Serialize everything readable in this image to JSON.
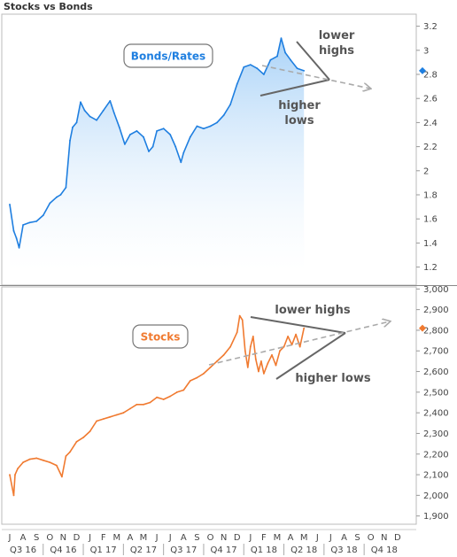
{
  "title": "Stocks vs Bonds",
  "chart_data": [
    {
      "type": "area",
      "name": "Bonds/Rates",
      "label": "Bonds/Rates",
      "color": "#1f7fe0",
      "ylim": [
        1.05,
        3.3
      ],
      "yticks": [
        "3.2",
        "3",
        "2.8",
        "2.6",
        "2.4",
        "2.2",
        "2",
        "1.8",
        "1.6",
        "1.4",
        "1.2"
      ],
      "ytick_values": [
        3.2,
        3.0,
        2.8,
        2.6,
        2.4,
        2.2,
        2.0,
        1.8,
        1.6,
        1.4,
        1.2
      ],
      "bold_tick": "2",
      "last_value": 2.83,
      "series": [
        {
          "t": 0.0,
          "y": 1.72
        },
        {
          "t": 0.3,
          "y": 1.5
        },
        {
          "t": 0.5,
          "y": 1.44
        },
        {
          "t": 0.7,
          "y": 1.36
        },
        {
          "t": 1.0,
          "y": 1.55
        },
        {
          "t": 1.5,
          "y": 1.57
        },
        {
          "t": 2.0,
          "y": 1.58
        },
        {
          "t": 2.5,
          "y": 1.63
        },
        {
          "t": 3.0,
          "y": 1.73
        },
        {
          "t": 3.5,
          "y": 1.78
        },
        {
          "t": 3.8,
          "y": 1.8
        },
        {
          "t": 4.2,
          "y": 1.86
        },
        {
          "t": 4.5,
          "y": 2.25
        },
        {
          "t": 4.7,
          "y": 2.36
        },
        {
          "t": 5.0,
          "y": 2.4
        },
        {
          "t": 5.3,
          "y": 2.57
        },
        {
          "t": 5.6,
          "y": 2.5
        },
        {
          "t": 6.0,
          "y": 2.45
        },
        {
          "t": 6.5,
          "y": 2.42
        },
        {
          "t": 7.0,
          "y": 2.5
        },
        {
          "t": 7.5,
          "y": 2.58
        },
        {
          "t": 7.8,
          "y": 2.48
        },
        {
          "t": 8.2,
          "y": 2.36
        },
        {
          "t": 8.6,
          "y": 2.22
        },
        {
          "t": 9.0,
          "y": 2.3
        },
        {
          "t": 9.5,
          "y": 2.33
        },
        {
          "t": 10.0,
          "y": 2.28
        },
        {
          "t": 10.4,
          "y": 2.16
        },
        {
          "t": 10.7,
          "y": 2.2
        },
        {
          "t": 11.0,
          "y": 2.33
        },
        {
          "t": 11.5,
          "y": 2.35
        },
        {
          "t": 12.0,
          "y": 2.3
        },
        {
          "t": 12.4,
          "y": 2.2
        },
        {
          "t": 12.8,
          "y": 2.07
        },
        {
          "t": 13.0,
          "y": 2.15
        },
        {
          "t": 13.5,
          "y": 2.28
        },
        {
          "t": 14.0,
          "y": 2.37
        },
        {
          "t": 14.5,
          "y": 2.35
        },
        {
          "t": 15.0,
          "y": 2.37
        },
        {
          "t": 15.5,
          "y": 2.4
        },
        {
          "t": 16.0,
          "y": 2.46
        },
        {
          "t": 16.5,
          "y": 2.55
        },
        {
          "t": 17.0,
          "y": 2.72
        },
        {
          "t": 17.5,
          "y": 2.86
        },
        {
          "t": 18.0,
          "y": 2.88
        },
        {
          "t": 18.5,
          "y": 2.85
        },
        {
          "t": 19.0,
          "y": 2.8
        },
        {
          "t": 19.5,
          "y": 2.92
        },
        {
          "t": 20.0,
          "y": 2.95
        },
        {
          "t": 20.3,
          "y": 3.1
        },
        {
          "t": 20.6,
          "y": 2.98
        },
        {
          "t": 21.0,
          "y": 2.92
        },
        {
          "t": 21.5,
          "y": 2.85
        },
        {
          "t": 22.0,
          "y": 2.83
        }
      ]
    },
    {
      "type": "line",
      "name": "Stocks",
      "label": "Stocks",
      "color": "#f07a30",
      "ylim": [
        1860,
        3010
      ],
      "yticks": [
        "3,000",
        "2,900",
        "2,800",
        "2,700",
        "2,600",
        "2,500",
        "2,400",
        "2,300",
        "2,200",
        "2,100",
        "2,000",
        "1,900"
      ],
      "ytick_values": [
        3000,
        2900,
        2800,
        2700,
        2600,
        2500,
        2400,
        2300,
        2200,
        2100,
        2000,
        1900
      ],
      "bold_tick": "2,000",
      "last_value": 2810,
      "series": [
        {
          "t": 0.0,
          "y": 2100
        },
        {
          "t": 0.3,
          "y": 2000
        },
        {
          "t": 0.4,
          "y": 2100
        },
        {
          "t": 0.6,
          "y": 2130
        },
        {
          "t": 1.0,
          "y": 2160
        },
        {
          "t": 1.5,
          "y": 2175
        },
        {
          "t": 2.0,
          "y": 2180
        },
        {
          "t": 2.5,
          "y": 2170
        },
        {
          "t": 3.0,
          "y": 2160
        },
        {
          "t": 3.5,
          "y": 2145
        },
        {
          "t": 3.9,
          "y": 2090
        },
        {
          "t": 4.2,
          "y": 2190
        },
        {
          "t": 4.5,
          "y": 2210
        },
        {
          "t": 5.0,
          "y": 2260
        },
        {
          "t": 5.5,
          "y": 2280
        },
        {
          "t": 6.0,
          "y": 2310
        },
        {
          "t": 6.5,
          "y": 2360
        },
        {
          "t": 7.0,
          "y": 2370
        },
        {
          "t": 7.5,
          "y": 2380
        },
        {
          "t": 8.0,
          "y": 2390
        },
        {
          "t": 8.5,
          "y": 2400
        },
        {
          "t": 9.0,
          "y": 2420
        },
        {
          "t": 9.5,
          "y": 2440
        },
        {
          "t": 10.0,
          "y": 2440
        },
        {
          "t": 10.5,
          "y": 2450
        },
        {
          "t": 11.0,
          "y": 2475
        },
        {
          "t": 11.5,
          "y": 2465
        },
        {
          "t": 12.0,
          "y": 2480
        },
        {
          "t": 12.5,
          "y": 2500
        },
        {
          "t": 13.0,
          "y": 2510
        },
        {
          "t": 13.5,
          "y": 2555
        },
        {
          "t": 14.0,
          "y": 2570
        },
        {
          "t": 14.5,
          "y": 2590
        },
        {
          "t": 15.0,
          "y": 2620
        },
        {
          "t": 15.5,
          "y": 2650
        },
        {
          "t": 16.0,
          "y": 2680
        },
        {
          "t": 16.5,
          "y": 2720
        },
        {
          "t": 17.0,
          "y": 2790
        },
        {
          "t": 17.2,
          "y": 2870
        },
        {
          "t": 17.4,
          "y": 2850
        },
        {
          "t": 17.6,
          "y": 2700
        },
        {
          "t": 17.8,
          "y": 2620
        },
        {
          "t": 18.0,
          "y": 2720
        },
        {
          "t": 18.2,
          "y": 2770
        },
        {
          "t": 18.4,
          "y": 2660
        },
        {
          "t": 18.6,
          "y": 2600
        },
        {
          "t": 18.8,
          "y": 2650
        },
        {
          "t": 19.0,
          "y": 2590
        },
        {
          "t": 19.3,
          "y": 2640
        },
        {
          "t": 19.6,
          "y": 2680
        },
        {
          "t": 19.9,
          "y": 2630
        },
        {
          "t": 20.2,
          "y": 2700
        },
        {
          "t": 20.5,
          "y": 2720
        },
        {
          "t": 20.8,
          "y": 2770
        },
        {
          "t": 21.1,
          "y": 2730
        },
        {
          "t": 21.4,
          "y": 2780
        },
        {
          "t": 21.7,
          "y": 2720
        },
        {
          "t": 22.0,
          "y": 2810
        }
      ]
    }
  ],
  "annotations": {
    "lower_highs_top": "lower\nhighs",
    "higher_lows_top": "higher\nlows",
    "lower_highs_bottom": "lower highs",
    "higher_lows_bottom": "higher lows"
  },
  "x_axis": {
    "months": [
      "J",
      "A",
      "S",
      "O",
      "N",
      "D",
      "J",
      "F",
      "M",
      "A",
      "M",
      "J",
      "J",
      "A",
      "S",
      "O",
      "N",
      "D",
      "J",
      "F",
      "M",
      "A",
      "M",
      "J",
      "J",
      "A",
      "S",
      "O",
      "N",
      "D"
    ],
    "quarters": [
      "Q3 16",
      "Q4 16",
      "Q1 17",
      "Q2 17",
      "Q3 17",
      "Q4 17",
      "Q1 18",
      "Q2 18",
      "Q3 18",
      "Q4 18"
    ]
  }
}
